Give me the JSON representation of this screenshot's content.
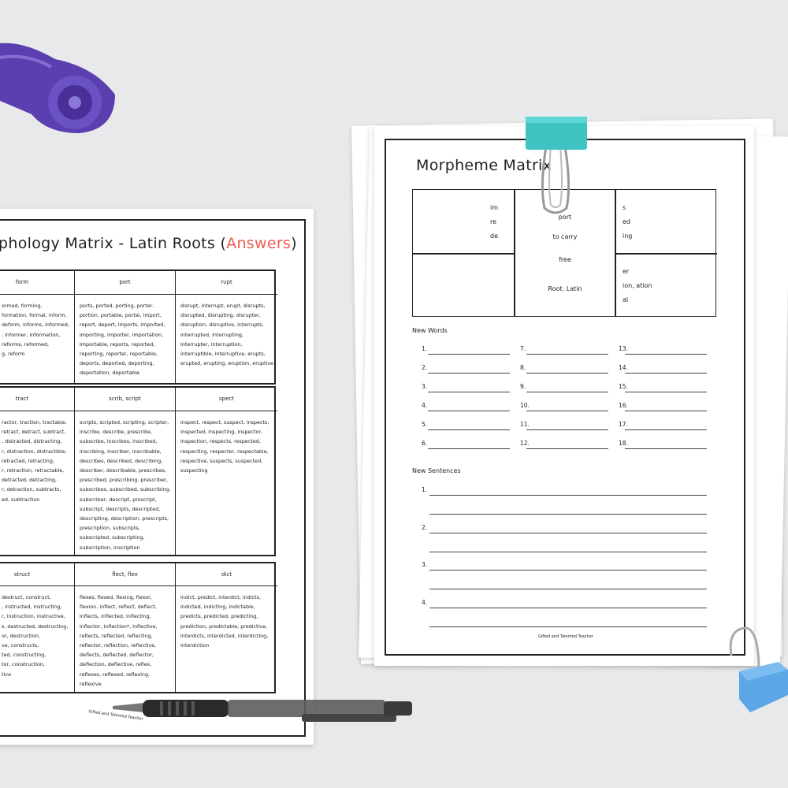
{
  "left_sheet": {
    "title_prefix": "phology Matrix - Latin Roots (",
    "title_answers": "Answers",
    "title_suffix": ")",
    "accent": "#f05a4f",
    "blocks": [
      {
        "headers": [
          "form",
          "port",
          "rupt"
        ],
        "cells": [
          [
            "ormed, forming,",
            "formation, formal, inform,",
            "deform, informs, informed,",
            ", informer, information,",
            "reforms, reformed,",
            "g, reform"
          ],
          [
            "ports, ported, porting, porter,",
            "portion, portable, portal, import,",
            "report, deport, imports, imported,",
            "importing, importer, importation,",
            "importable, reports, reported,",
            "reporting, reporter, reportable,",
            "deports, deported, deporting,",
            "deportation, deportable"
          ],
          [
            "disrupt, interrupt, erupt, disrupts,",
            "disrupted, disrupting, disrupter,",
            "disruption, disruptive, interrupts,",
            "interrupted, interrupting,",
            "interrupter, interruption,",
            "interruptible, interruptive, erupts,",
            "erupted, erupting, eruption, eruptive"
          ]
        ]
      },
      {
        "headers": [
          "tract",
          "scrib, script",
          "spect"
        ],
        "cells": [
          [
            "ractor, traction, tractable,",
            "retract, detract, subtract,",
            ", distracted, distracting,",
            "r, distraction, distractible,",
            "retracted, retracting,",
            "r, retraction, retractable,",
            "detracted, detracting,",
            "r, detraction, subtracts,",
            "ed, subtraction"
          ],
          [
            "scripts, scripted, scripting, scripter,",
            "inscribe, describe, prescribe,",
            "subscribe, inscribes, inscribed,",
            "inscribing, inscriber, inscribable,",
            "describes, described, describing,",
            "describer, describable, prescribes,",
            "prescribed, prescribing, prescriber,",
            "subscribes, subscribed, subscribing,",
            "subscriber, descript, prescript,",
            "subscript, descripts, descripted,",
            "descripting, description, prescripts,",
            "prescription, subscripts,",
            "subscripted, subscripting,",
            "subscription, inscription"
          ],
          [
            "inspect, respect, suspect, inspects,",
            "inspected, inspecting, inspector,",
            "inspection, respects, respected,",
            "respecting, respecter, respectable,",
            "respective, suspects, suspected,",
            "suspecting"
          ]
        ]
      },
      {
        "headers": [
          "struct",
          "flect, flex",
          "dict"
        ],
        "cells": [
          [
            "destruct, construct,",
            ", instructed, instructing,",
            "r, instruction, instructive,",
            "s, destructed, destructing,",
            "or, destruction,",
            "ve, constructs,",
            "ted, constructing,",
            "tor, construction,",
            "tive"
          ],
          [
            "flexes, flexed, flexing, flexor,",
            "flexion, inflect, reflect, deflect,",
            "inflects, inflected, inflecting,",
            "inflector, inflection*, inflective,",
            "reflects, reflected, reflecting,",
            "reflector, reflection, reflective,",
            "deflects, deflected, deflector,",
            "deflection, deflective, reflex,",
            "reflexes, reflexed, reflexing,",
            "reflexive"
          ],
          [
            "indict, predict, interdict, indicts,",
            "indicted, indicting, indictable,",
            "predicts, predicted, predicting,",
            "prediction, predictable, predictive,",
            "interdicts, interdicted, interdicting,",
            "interdiction"
          ]
        ]
      }
    ],
    "logo": "Gifted and Talented Teacher"
  },
  "right_sheet": {
    "title": "Morpheme Matrix",
    "prefixes": [
      "im",
      "re",
      "de"
    ],
    "root": {
      "word": "port",
      "meaning_1": "to carry",
      "meaning_2": "free",
      "origin": "Root: Latin"
    },
    "suffixes_top": [
      "s",
      "ed",
      "ing"
    ],
    "suffixes_bottom": [
      "er",
      "ion, ation",
      "al"
    ],
    "new_words_label": "New Words",
    "word_numbers": [
      "1.",
      "2.",
      "3.",
      "4.",
      "5.",
      "6.",
      "7.",
      "8.",
      "9.",
      "10.",
      "11.",
      "12.",
      "13.",
      "14.",
      "15.",
      "16.",
      "17.",
      "18."
    ],
    "new_sentences_label": "New Sentences",
    "sentence_numbers": [
      "1.",
      "2.",
      "3.",
      "4."
    ],
    "logo": "Gifted and Talented Teacher"
  },
  "props": {
    "tape_color": "#5b3fb0",
    "clip_teal": "#3fc4c4",
    "clip_blue": "#5aa6e6",
    "pen_color": "#333"
  }
}
